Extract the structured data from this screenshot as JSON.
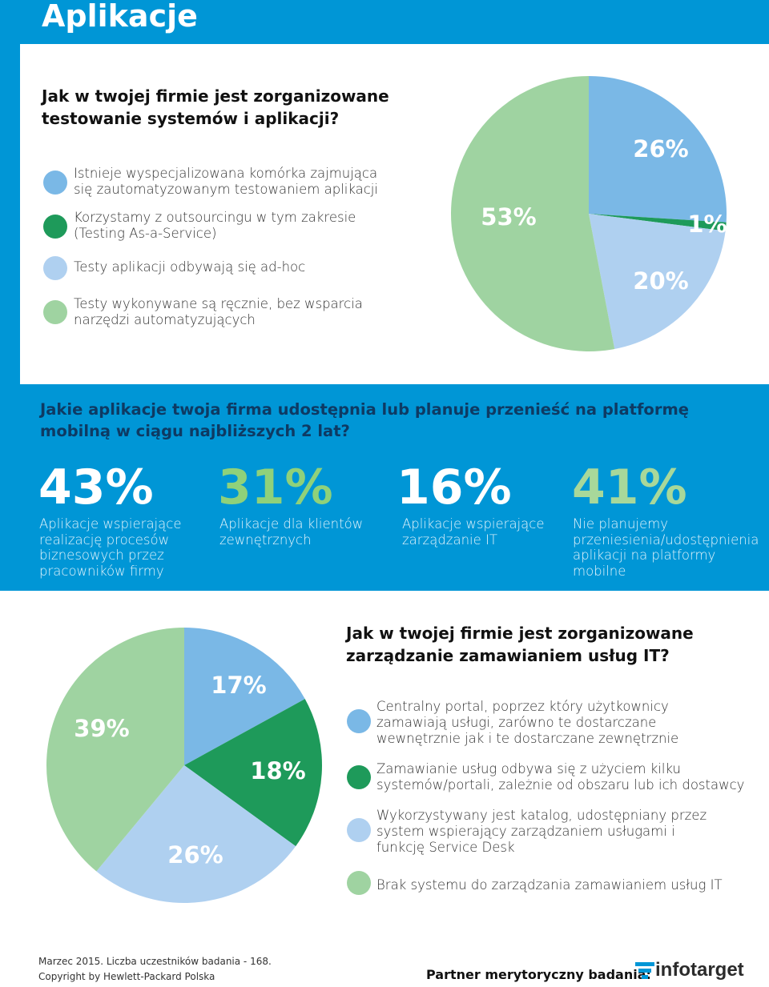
{
  "page": {
    "title": "Aplikacje"
  },
  "section1": {
    "question": "Jak w twojej firmie jest zorganizowane testowanie systemów i aplikacji?",
    "legend": [
      {
        "label": "Istnieje wyspecjalizowana komórka zajmująca się zautomatyzowanym testowaniem aplikacji",
        "color": "#7ab8e6"
      },
      {
        "label": "Korzystamy z outsourcingu w tym zakresie (Testing As-a-Service)",
        "color": "#1e9a5a"
      },
      {
        "label": "Testy aplikacji odbywają się ad-hoc",
        "color": "#afd0f0"
      },
      {
        "label": "Testy wykonywane są ręcznie, bez wsparcia narzędzi automatyzujących",
        "color": "#9fd3a1"
      }
    ]
  },
  "section2": {
    "question": "Jakie aplikacje twoja firma udostępnia lub planuje przenieść na platformę mobilną w ciągu najbliższych 2 lat?",
    "stats": [
      {
        "value": "43%",
        "label": "Aplikacje wspierające realizację procesów biznesowych przez pracowników firmy",
        "color": "#ffffff"
      },
      {
        "value": "31%",
        "label": "Aplikacje dla klientów zewnętrznych",
        "color": "#8fd17a"
      },
      {
        "value": "16%",
        "label": "Aplikacje wspierające zarządzanie IT",
        "color": "#ffffff"
      },
      {
        "value": "41%",
        "label": "Nie planujemy przeniesienia/udostępnienia aplikacji na platformy mobilne",
        "color": "#a8d89a"
      }
    ]
  },
  "section3": {
    "question": "Jak w twojej firmie jest zorganizowane zarządzanie zamawianiem usług IT?",
    "legend": [
      {
        "label": "Centralny portal, poprzez który użytkownicy zamawiają usługi, zarówno te dostarczane wewnętrznie jak i te dostarczane zewnętrznie",
        "color": "#7ab8e6"
      },
      {
        "label": "Zamawianie usług odbywa się z użyciem kilku systemów/portali, zależnie od obszaru lub ich dostawcy",
        "color": "#1e9a5a"
      },
      {
        "label": "Wykorzystywany jest katalog, udostępniany przez system wspierający zarządzaniem usługami i funkcję Service Desk",
        "color": "#afd0f0"
      },
      {
        "label": "Brak systemu do zarządzania zamawianiem usług IT",
        "color": "#9fd3a1"
      }
    ]
  },
  "chart_data": [
    {
      "type": "pie",
      "categories": [
        "Istnieje wyspecjalizowana komórka zajmująca się zautomatyzowanym testowaniem aplikacji",
        "Korzystamy z outsourcingu w tym zakresie (Testing As-a-Service)",
        "Testy aplikacji odbywają się ad-hoc",
        "Testy wykonywane są ręcznie, bez wsparcia narzędzi automatyzujących"
      ],
      "values": [
        26,
        1,
        20,
        53
      ],
      "labels": [
        "26%",
        "1%",
        "20%",
        "53%"
      ],
      "colors": [
        "#7ab8e6",
        "#1e9a5a",
        "#afd0f0",
        "#9fd3a1"
      ]
    },
    {
      "type": "pie",
      "categories": [
        "Centralny portal, poprzez który użytkownicy zamawiają usługi, zarówno te dostarczane wewnętrznie jak i te dostarczane zewnętrznie",
        "Zamawianie usług odbywa się z użyciem kilku systemów/portali, zależnie od obszaru lub ich dostawcy",
        "Wykorzystywany jest katalog, udostępniany przez system wspierający zarządzaniem usługami i funkcję Service Desk",
        "Brak systemu do zarządzania zamawianiem usług IT"
      ],
      "values": [
        17,
        18,
        26,
        39
      ],
      "labels": [
        "17%",
        "18%",
        "26%",
        "39%"
      ],
      "colors": [
        "#7ab8e6",
        "#1e9a5a",
        "#afd0f0",
        "#9fd3a1"
      ]
    }
  ],
  "footer": {
    "line1": "Marzec 2015. Liczba uczestników badania - 168.",
    "line2": "Copyright by Hewlett-Packard Polska",
    "partner_label": "Partner merytoryczny badania:",
    "logo_text": "infotarget"
  }
}
